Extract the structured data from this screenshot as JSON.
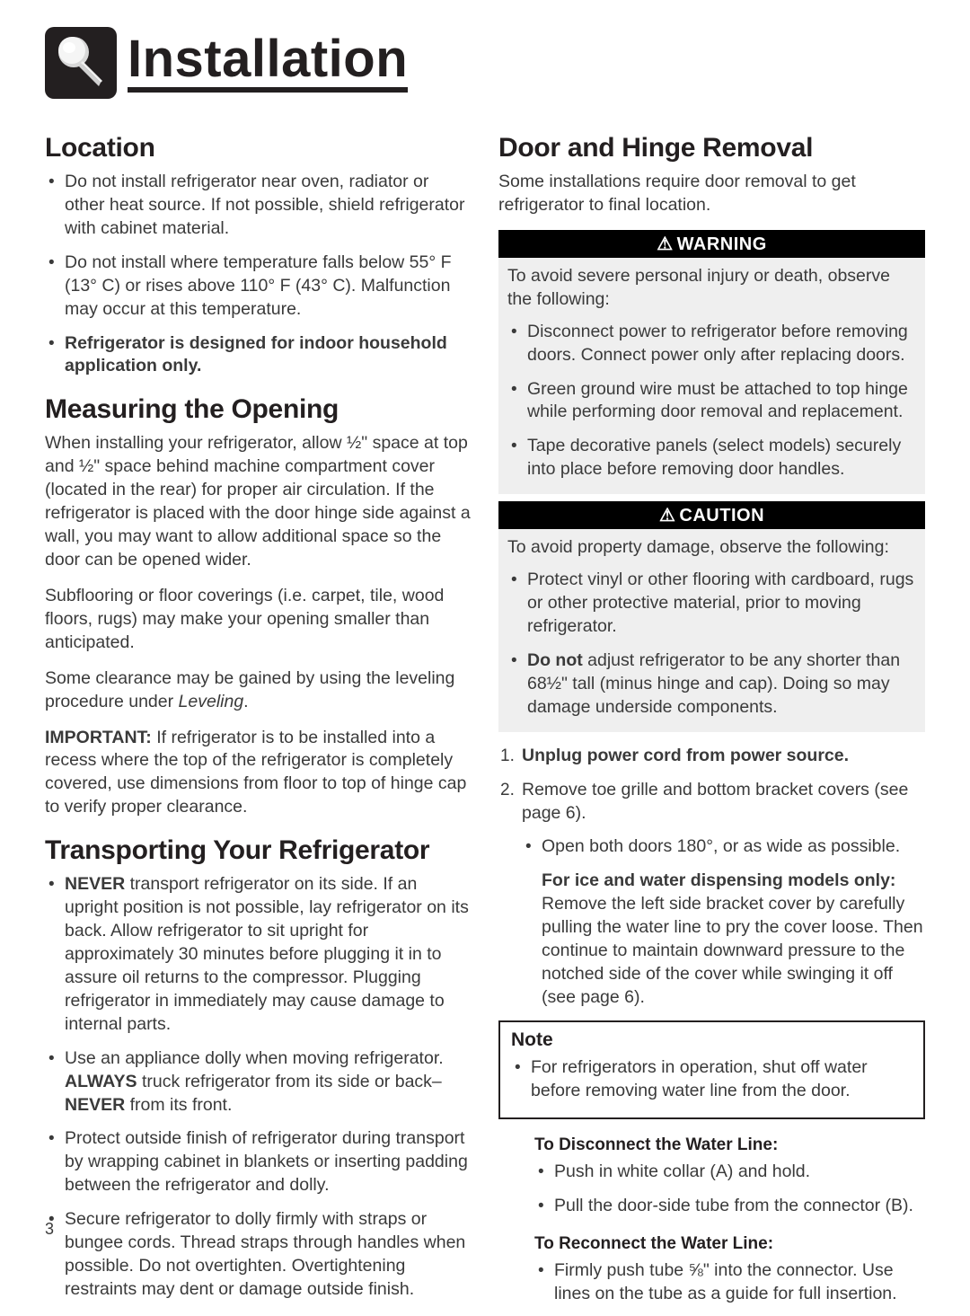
{
  "page_title": "Installation",
  "page_number": "3",
  "left": {
    "location": {
      "heading": "Location",
      "items": [
        "Do not install refrigerator near oven, radiator or other heat source. If not possible, shield refrigerator with cabinet material.",
        "Do not install where temperature falls below 55° F (13° C) or rises above 110° F (43° C). Malfunction may occur at this temperature.",
        "<b>Refrigerator is designed for indoor household application only.</b>"
      ]
    },
    "measuring": {
      "heading": "Measuring the Opening",
      "p1": "When installing your refrigerator, allow ½\" space at top and ½\" space behind machine compartment cover (located in the rear) for proper air circulation. If the refrigerator is placed with the door hinge side against a wall, you may want to allow additional space so the door can be opened wider.",
      "p2": "Subflooring or floor coverings (i.e. carpet, tile, wood floors, rugs) may make your opening smaller than anticipated.",
      "p3": "Some clearance may be gained by using the leveling procedure under <i>Leveling</i>.",
      "p4": "<b>IMPORTANT:</b> If refrigerator is to be installed into a recess where the top of the refrigerator is completely covered, use dimensions from floor to top of hinge cap to verify proper clearance."
    },
    "transport": {
      "heading": "Transporting Your Refrigerator",
      "items": [
        "<b>NEVER</b> transport refrigerator on its side. If an upright position is not possible, lay refrigerator on its back. Allow refrigerator to sit upright for approximately 30 minutes before plugging it in to assure oil returns to the compressor. Plugging refrigerator in immediately may cause damage to internal parts.",
        "Use an appliance dolly when moving refrigerator. <b>ALWAYS</b> truck refrigerator from its side or back–<b>NEVER</b> from its front.",
        "Protect outside finish of refrigerator during transport by wrapping cabinet in blankets or inserting padding between the refrigerator and dolly.",
        "Secure refrigerator to dolly firmly with straps or bungee cords. Thread straps through handles when possible. Do not overtighten. Overtightening restraints may dent or damage outside finish."
      ]
    }
  },
  "right": {
    "door": {
      "heading": "Door and Hinge Removal",
      "intro": "Some installations require door removal to get refrigerator to final location."
    },
    "warning": {
      "banner": "WARNING",
      "intro": "To avoid severe personal injury or death, observe the following:",
      "items": [
        "Disconnect power to refrigerator before removing doors. Connect power only after replacing doors.",
        "Green ground wire must be attached to top hinge while performing door removal and replacement.",
        "Tape decorative panels (select models) securely into place before removing door handles."
      ]
    },
    "caution": {
      "banner": "CAUTION",
      "intro": "To avoid property damage, observe the following:",
      "items": [
        "Protect vinyl or other flooring with cardboard, rugs or other protective material, prior to moving refrigerator.",
        "<b>Do not</b> adjust refrigerator to be any shorter than 68½\" tall (minus hinge and cap). Doing so may damage underside components."
      ]
    },
    "steps": {
      "item1": "<b>Unplug power cord from power source.</b>",
      "item2": "Remove toe grille and bottom bracket covers (see page 6).",
      "sub1": "Open both doors 180°, or as wide as possible.",
      "sub2": "<b>For ice and water dispensing models only:</b> Remove the left side bracket cover by carefully pulling the water line to pry the cover loose. Then continue to maintain downward pressure to the notched side of the cover while swinging it off (see page 6)."
    },
    "note": {
      "title": "Note",
      "item": "For refrigerators in operation, shut off water before removing water line from the door."
    },
    "disconnect": {
      "title": "To Disconnect the Water Line:",
      "items": [
        "Push in white collar (A) and hold.",
        "Pull the door-side tube from the connector (B)."
      ]
    },
    "reconnect": {
      "title": "To Reconnect the Water Line:",
      "items": [
        "Firmly push tube ⅝\" into the connector. Use lines on the tube as a guide for full insertion."
      ]
    }
  }
}
